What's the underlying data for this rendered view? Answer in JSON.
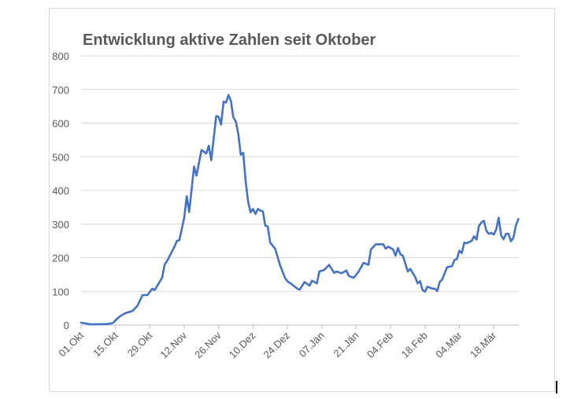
{
  "chart_data": {
    "type": "line",
    "title": "Entwicklung aktive Zahlen seit Oktober",
    "xlabel": "",
    "ylabel": "",
    "ylim": [
      0,
      800
    ],
    "yticks": [
      0,
      100,
      200,
      300,
      400,
      500,
      600,
      700,
      800
    ],
    "xtick_labels": [
      "01.Okt",
      "15.Okt",
      "29.Okt",
      "12.Nov",
      "26.Nov",
      "10.Dez",
      "24.Dez",
      "07.Jän",
      "21.Jän",
      "04.Feb",
      "18.Feb",
      "04.Mär",
      "18.Mär"
    ],
    "grid": true,
    "legend": "none",
    "line_color": "#4472c4",
    "series": [
      {
        "x": [
          "01.Okt",
          "05.Okt",
          "12.Okt",
          "14.Okt",
          "15.Okt",
          "17.Okt",
          "19.Okt",
          "22.Okt",
          "24.Okt",
          "26.Okt",
          "28.Okt",
          "30.Okt",
          "31.Okt",
          "03.Nov",
          "04.Nov",
          "05.Nov",
          "08.Nov",
          "09.Nov",
          "10.Nov",
          "12.Nov",
          "13.Nov",
          "14.Nov",
          "16.Nov",
          "17.Nov",
          "19.Nov",
          "21.Nov",
          "22.Nov",
          "23.Nov",
          "25.Nov",
          "26.Nov",
          "27.Nov",
          "28.Nov",
          "29.Nov",
          "30.Nov",
          "01.Dez",
          "02.Dez",
          "03.Dez",
          "04.Dez",
          "05.Dez",
          "06.Dez",
          "07.Dez",
          "08.Dez",
          "09.Dez",
          "10.Dez",
          "11.Dez",
          "12.Dez",
          "13.Dez",
          "14.Dez",
          "15.Dez",
          "16.Dez",
          "17.Dez",
          "19.Dez",
          "21.Dez",
          "23.Dez",
          "24.Dez",
          "26.Dez",
          "28.Dez",
          "29.Dez",
          "31.Dez",
          "02.Jän",
          "03.Jän",
          "05.Jän",
          "06.Jän",
          "08.Jän",
          "10.Jän",
          "12.Jän",
          "13.Jän",
          "15.Jän",
          "17.Jän",
          "18.Jän",
          "20.Jän",
          "22.Jän",
          "24.Jän",
          "26.Jän",
          "27.Jän",
          "29.Jän",
          "01.Feb",
          "02.Feb",
          "03.Feb",
          "05.Feb",
          "06.Feb",
          "07.Feb",
          "08.Feb",
          "09.Feb",
          "11.Feb",
          "12.Feb",
          "14.Feb",
          "15.Feb",
          "16.Feb",
          "17.Feb",
          "18.Feb",
          "19.Feb",
          "21.Feb",
          "22.Feb",
          "23.Feb",
          "24.Feb",
          "25.Feb",
          "27.Feb",
          "01.Mär",
          "02.Mär",
          "03.Mär",
          "04.Mär",
          "05.Mär",
          "06.Mär",
          "07.Mär",
          "09.Mär",
          "10.Mär",
          "11.Mär",
          "12.Mär",
          "13.Mär",
          "14.Mär",
          "15.Mär",
          "16.Mär",
          "17.Mär",
          "18.Mär",
          "19.Mär",
          "20.Mär",
          "21.Mär",
          "22.Mär",
          "23.Mär",
          "24.Mär",
          "25.Mär",
          "26.Mär",
          "27.Mär",
          "28.Mär"
        ],
        "values": [
          7,
          2,
          3,
          6,
          14,
          27,
          35,
          42,
          58,
          89,
          89,
          108,
          104,
          141,
          180,
          190,
          233,
          250,
          252,
          319,
          383,
          336,
          471,
          444,
          520,
          510,
          533,
          490,
          621,
          619,
          596,
          664,
          661,
          684,
          666,
          617,
          605,
          568,
          506,
          512,
          428,
          366,
          335,
          345,
          330,
          345,
          340,
          338,
          295,
          293,
          245,
          227,
          178,
          140,
          130,
          120,
          108,
          105,
          128,
          117,
          132,
          124,
          159,
          164,
          179,
          155,
          159,
          154,
          162,
          146,
          140,
          159,
          185,
          179,
          225,
          240,
          240,
          227,
          233,
          225,
          206,
          229,
          210,
          206,
          159,
          167,
          143,
          124,
          130,
          104,
          99,
          114,
          108,
          108,
          101,
          128,
          135,
          172,
          175,
          193,
          196,
          221,
          214,
          245,
          243,
          250,
          264,
          254,
          295,
          305,
          310,
          280,
          271,
          274,
          269,
          284,
          319,
          267,
          255,
          271,
          271,
          249,
          259,
          295,
          315
        ]
      }
    ]
  }
}
